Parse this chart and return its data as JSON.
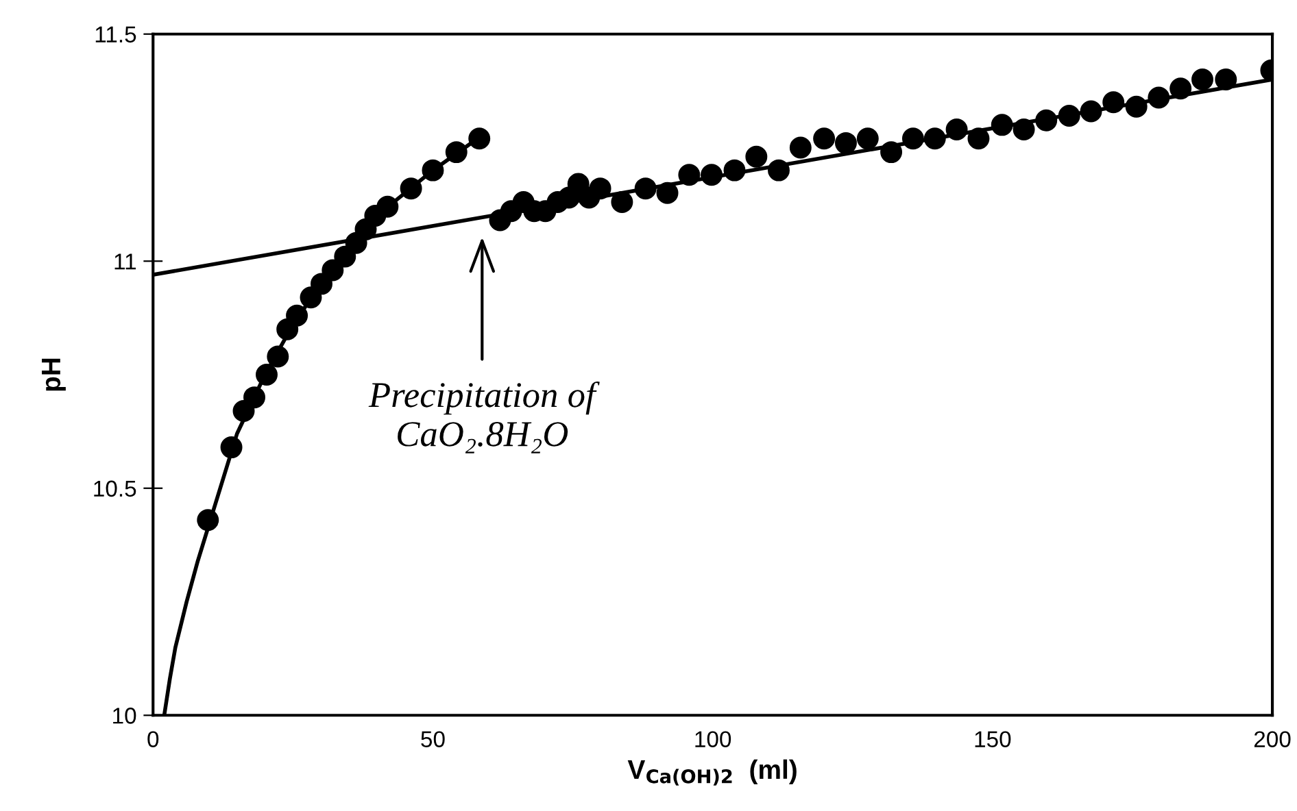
{
  "chart_data": {
    "type": "scatter",
    "xlabel": "V$_{Ca(OH)2}$  (ml)",
    "ylabel": "pH",
    "xlim": [
      0,
      200
    ],
    "ylim": [
      10,
      11.5
    ],
    "xticks": [
      0,
      50,
      100,
      150,
      200
    ],
    "yticks": [
      10,
      10.5,
      11,
      11.5
    ],
    "grid": false,
    "legend": false,
    "marker": "circle",
    "series": [
      {
        "color": "#000000",
        "x": [
          9.8,
          14.0,
          16.2,
          18.1,
          20.3,
          22.3,
          24.0,
          25.7,
          28.2,
          30.1,
          32.1,
          34.3,
          36.3,
          38.0,
          39.7,
          41.9,
          46.1,
          50.0,
          54.2,
          58.3
        ],
        "values": [
          10.43,
          10.59,
          10.67,
          10.7,
          10.75,
          10.79,
          10.85,
          10.88,
          10.92,
          10.95,
          10.98,
          11.01,
          11.04,
          11.07,
          11.1,
          11.12,
          11.16,
          11.2,
          11.24,
          11.27
        ]
      },
      {
        "color": "#000000",
        "x": [
          62.0,
          64.0,
          66.2,
          68.1,
          70.1,
          72.3,
          74.3,
          76.0,
          77.9,
          79.9,
          83.8,
          88.0,
          91.9,
          95.8,
          99.8,
          103.9,
          107.8,
          111.8,
          115.7,
          119.9,
          123.8,
          127.7,
          131.9,
          135.8,
          139.7,
          143.6,
          147.5,
          151.7,
          155.6,
          159.6,
          163.7,
          167.6,
          171.6,
          175.7,
          179.7,
          183.6,
          187.5,
          191.7,
          199.8
        ],
        "values": [
          11.09,
          11.11,
          11.13,
          11.11,
          11.11,
          11.13,
          11.14,
          11.17,
          11.14,
          11.16,
          11.13,
          11.16,
          11.15,
          11.19,
          11.19,
          11.2,
          11.23,
          11.2,
          11.25,
          11.27,
          11.26,
          11.27,
          11.24,
          11.27,
          11.27,
          11.29,
          11.27,
          11.3,
          11.29,
          11.31,
          11.32,
          11.33,
          11.35,
          11.34,
          11.36,
          11.38,
          11.4,
          11.4,
          11.42
        ]
      },
      {
        "type": "line",
        "color": "#000000",
        "marker": "none",
        "x": [
          2,
          3,
          4,
          6,
          8,
          10,
          15,
          20,
          25,
          30,
          35,
          40,
          45,
          50,
          58
        ],
        "values": [
          10.0,
          10.08,
          10.15,
          10.25,
          10.34,
          10.42,
          10.62,
          10.75,
          10.86,
          10.95,
          11.02,
          11.1,
          11.15,
          11.2,
          11.27
        ]
      },
      {
        "type": "line",
        "color": "#000000",
        "marker": "none",
        "x": [
          0,
          200
        ],
        "values": [
          10.97,
          11.4
        ]
      }
    ],
    "annotations": [
      "Precipitation of\nCaO₂.8H₂O"
    ]
  }
}
